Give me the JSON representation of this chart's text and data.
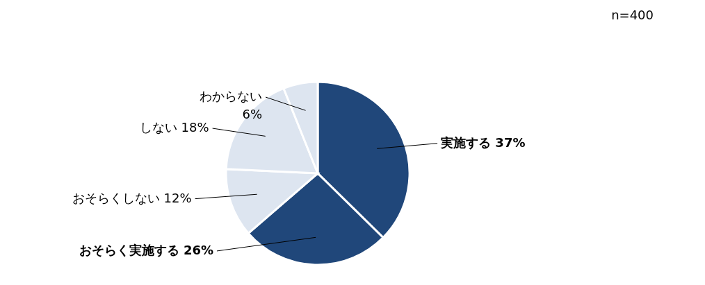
{
  "chart_data": {
    "type": "pie",
    "categories": [
      "実施する",
      "おそらく実施する",
      "おそらくしない",
      "しない",
      "わからない"
    ],
    "values": [
      37,
      26,
      12,
      18,
      6
    ],
    "value_labels": [
      "37%",
      "26%",
      "12%",
      "18%",
      "6%"
    ],
    "colors": [
      "#20477a",
      "#20477a",
      "#dde5f0",
      "#dde5f0",
      "#dde5f0"
    ],
    "annotations": [
      "n=400"
    ],
    "legend": false
  }
}
